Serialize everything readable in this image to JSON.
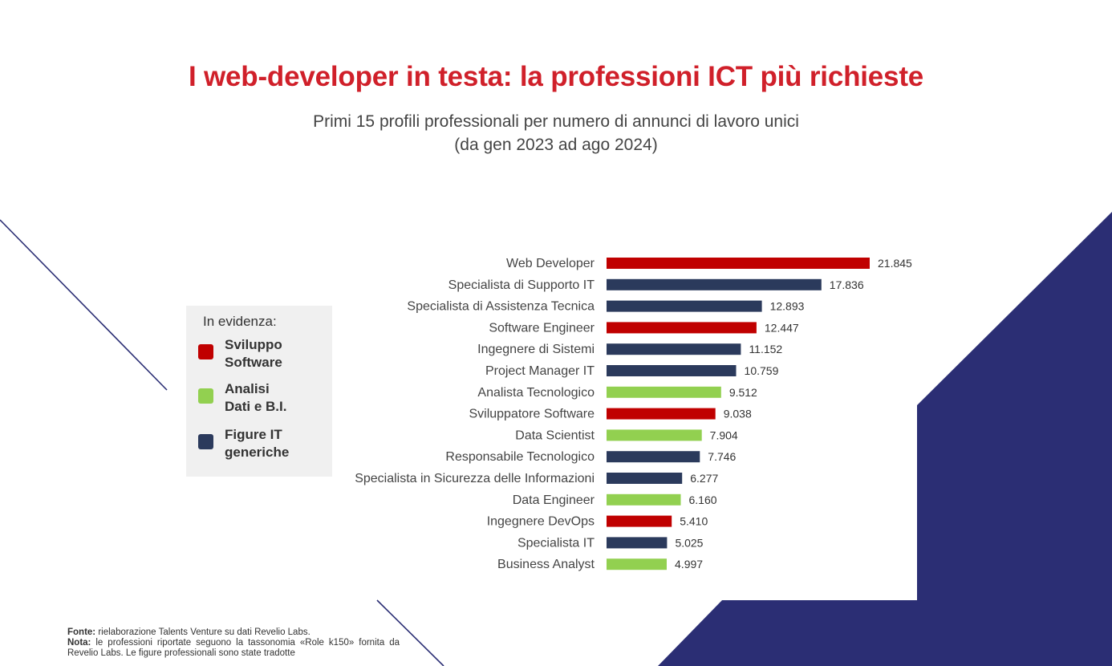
{
  "title": "I web-developer in testa: la professioni ICT più richieste",
  "subtitle_line1": "Primi 15 profili professionali per numero di annunci di lavoro unici",
  "subtitle_line2": "(da gen 2023 ad ago 2024)",
  "colors": {
    "title": "#d0202a",
    "sviluppo": "#c00000",
    "analisi": "#92d050",
    "generiche": "#2b3a5c",
    "decor": "#2b2e74"
  },
  "legend": {
    "title": "In evidenza:",
    "items": [
      {
        "label": "Sviluppo\nSoftware",
        "color": "#c00000"
      },
      {
        "label": "Analisi\nDati e B.I.",
        "color": "#92d050"
      },
      {
        "label": "Figure IT\ngeneriche",
        "color": "#2b3a5c"
      }
    ]
  },
  "chart_data": {
    "type": "bar",
    "orientation": "horizontal",
    "xlim": [
      0,
      21845
    ],
    "grid": false,
    "legend_position": "left",
    "categories": [
      "Web Developer",
      "Specialista di Supporto IT",
      "Specialista di Assistenza Tecnica",
      "Software Engineer",
      "Ingegnere di Sistemi",
      "Project Manager IT",
      "Analista Tecnologico",
      "Sviluppatore Software",
      "Data Scientist",
      "Responsabile Tecnologico",
      "Specialista in Sicurezza delle Informazioni",
      "Data Engineer",
      "Ingegnere DevOps",
      "Specialista IT",
      "Business Analyst"
    ],
    "values": [
      21845,
      17836,
      12893,
      12447,
      11152,
      10759,
      9512,
      9038,
      7904,
      7746,
      6277,
      6160,
      5410,
      5025,
      4997
    ],
    "value_labels": [
      "21.845",
      "17.836",
      "12.893",
      "12.447",
      "11.152",
      "10.759",
      "9.512",
      "9.038",
      "7.904",
      "7.746",
      "6.277",
      "6.160",
      "5.410",
      "5.025",
      "4.997"
    ],
    "groups": [
      "Sviluppo Software",
      "Figure IT generiche",
      "Figure IT generiche",
      "Sviluppo Software",
      "Figure IT generiche",
      "Figure IT generiche",
      "Analisi Dati e B.I.",
      "Sviluppo Software",
      "Analisi Dati e B.I.",
      "Figure IT generiche",
      "Figure IT generiche",
      "Analisi Dati e B.I.",
      "Sviluppo Software",
      "Figure IT generiche",
      "Analisi Dati e B.I."
    ],
    "group_colors": {
      "Sviluppo Software": "#c00000",
      "Analisi Dati e B.I.": "#92d050",
      "Figure IT generiche": "#2b3a5c"
    }
  },
  "footnote": {
    "fonte_label": "Fonte:",
    "fonte_text": " rielaborazione Talents Venture su dati Revelio Labs.",
    "nota_label": "Nota:",
    "nota_text": " le professioni riportate seguono la tassonomia «Role k150» fornita da Revelio Labs. Le figure professionali sono state tradotte"
  }
}
